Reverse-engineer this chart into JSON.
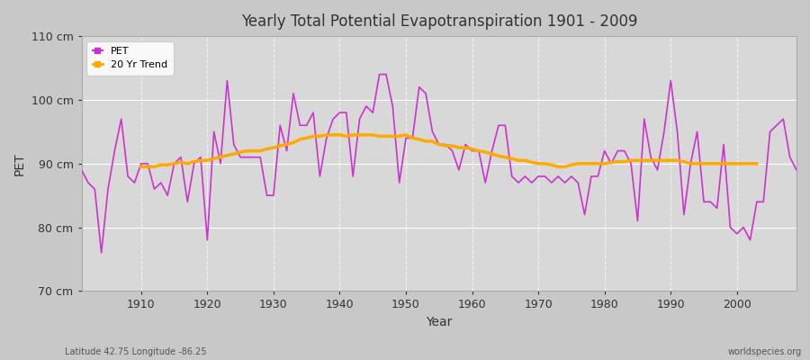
{
  "title": "Yearly Total Potential Evapotranspiration 1901 - 2009",
  "xlabel": "Year",
  "ylabel": "PET",
  "ylim": [
    70,
    110
  ],
  "xlim": [
    1901,
    2009
  ],
  "yticks": [
    70,
    80,
    90,
    100,
    110
  ],
  "ytick_labels": [
    "70 cm",
    "80 cm",
    "90 cm",
    "100 cm",
    "110 cm"
  ],
  "xticks": [
    1910,
    1920,
    1930,
    1940,
    1950,
    1960,
    1970,
    1980,
    1990,
    2000
  ],
  "pet_color": "#cc33cc",
  "trend_color": "#ffaa00",
  "fig_bg_color": "#c8c8c8",
  "plot_bg_color": "#d8d8d8",
  "subtitle_left": "Latitude 42.75 Longitude -86.25",
  "subtitle_right": "worldspecies.org",
  "legend_entries": [
    "PET",
    "20 Yr Trend"
  ],
  "years": [
    1901,
    1902,
    1903,
    1904,
    1905,
    1906,
    1907,
    1908,
    1909,
    1910,
    1911,
    1912,
    1913,
    1914,
    1915,
    1916,
    1917,
    1918,
    1919,
    1920,
    1921,
    1922,
    1923,
    1924,
    1925,
    1926,
    1927,
    1928,
    1929,
    1930,
    1931,
    1932,
    1933,
    1934,
    1935,
    1936,
    1937,
    1938,
    1939,
    1940,
    1941,
    1942,
    1943,
    1944,
    1945,
    1946,
    1947,
    1948,
    1949,
    1950,
    1951,
    1952,
    1953,
    1954,
    1955,
    1956,
    1957,
    1958,
    1959,
    1960,
    1961,
    1962,
    1963,
    1964,
    1965,
    1966,
    1967,
    1968,
    1969,
    1970,
    1971,
    1972,
    1973,
    1974,
    1975,
    1976,
    1977,
    1978,
    1979,
    1980,
    1981,
    1982,
    1983,
    1984,
    1985,
    1986,
    1987,
    1988,
    1989,
    1990,
    1991,
    1992,
    1993,
    1994,
    1995,
    1996,
    1997,
    1998,
    1999,
    2000,
    2001,
    2002,
    2003,
    2004,
    2005,
    2006,
    2007,
    2008,
    2009
  ],
  "pet_values": [
    89,
    87,
    86,
    76,
    86,
    92,
    97,
    88,
    87,
    90,
    90,
    86,
    87,
    85,
    90,
    91,
    84,
    90,
    91,
    78,
    95,
    90,
    103,
    93,
    91,
    91,
    91,
    91,
    85,
    85,
    96,
    92,
    101,
    96,
    96,
    98,
    88,
    94,
    97,
    98,
    98,
    88,
    97,
    99,
    98,
    104,
    104,
    99,
    87,
    94,
    94,
    102,
    101,
    95,
    93,
    93,
    92,
    89,
    93,
    92,
    92,
    87,
    92,
    96,
    96,
    88,
    87,
    88,
    87,
    88,
    88,
    87,
    88,
    87,
    88,
    87,
    82,
    88,
    88,
    92,
    90,
    92,
    92,
    90,
    81,
    97,
    91,
    89,
    95,
    103,
    95,
    82,
    90,
    95,
    84,
    84,
    83,
    93,
    80,
    79,
    80,
    78,
    84,
    84,
    95,
    96,
    97,
    91,
    89
  ],
  "trend_values": [
    null,
    null,
    null,
    null,
    null,
    null,
    null,
    null,
    null,
    89.5,
    89.5,
    89.5,
    89.8,
    89.8,
    90.0,
    90.2,
    90.0,
    90.3,
    90.5,
    90.5,
    90.8,
    91.0,
    91.3,
    91.5,
    91.8,
    92.0,
    92.0,
    92.0,
    92.3,
    92.5,
    92.8,
    93.0,
    93.3,
    93.8,
    94.0,
    94.3,
    94.3,
    94.5,
    94.5,
    94.5,
    94.3,
    94.5,
    94.5,
    94.5,
    94.5,
    94.3,
    94.3,
    94.3,
    94.3,
    94.5,
    94.0,
    93.8,
    93.5,
    93.5,
    93.0,
    92.8,
    92.8,
    92.5,
    92.5,
    92.3,
    92.0,
    91.8,
    91.5,
    91.2,
    91.0,
    90.8,
    90.5,
    90.5,
    90.2,
    90.0,
    90.0,
    89.8,
    89.5,
    89.5,
    89.8,
    90.0,
    90.0,
    90.0,
    90.0,
    90.0,
    90.2,
    90.3,
    90.3,
    90.5,
    90.5,
    90.5,
    90.5,
    90.5,
    90.5,
    90.5,
    90.5,
    90.3,
    90.0,
    90.0,
    90.0,
    90.0,
    90.0,
    90.0,
    90.0,
    90.0,
    90.0,
    90.0,
    90.0,
    null,
    null,
    null,
    null,
    null,
    null,
    null,
    null,
    null,
    null
  ]
}
